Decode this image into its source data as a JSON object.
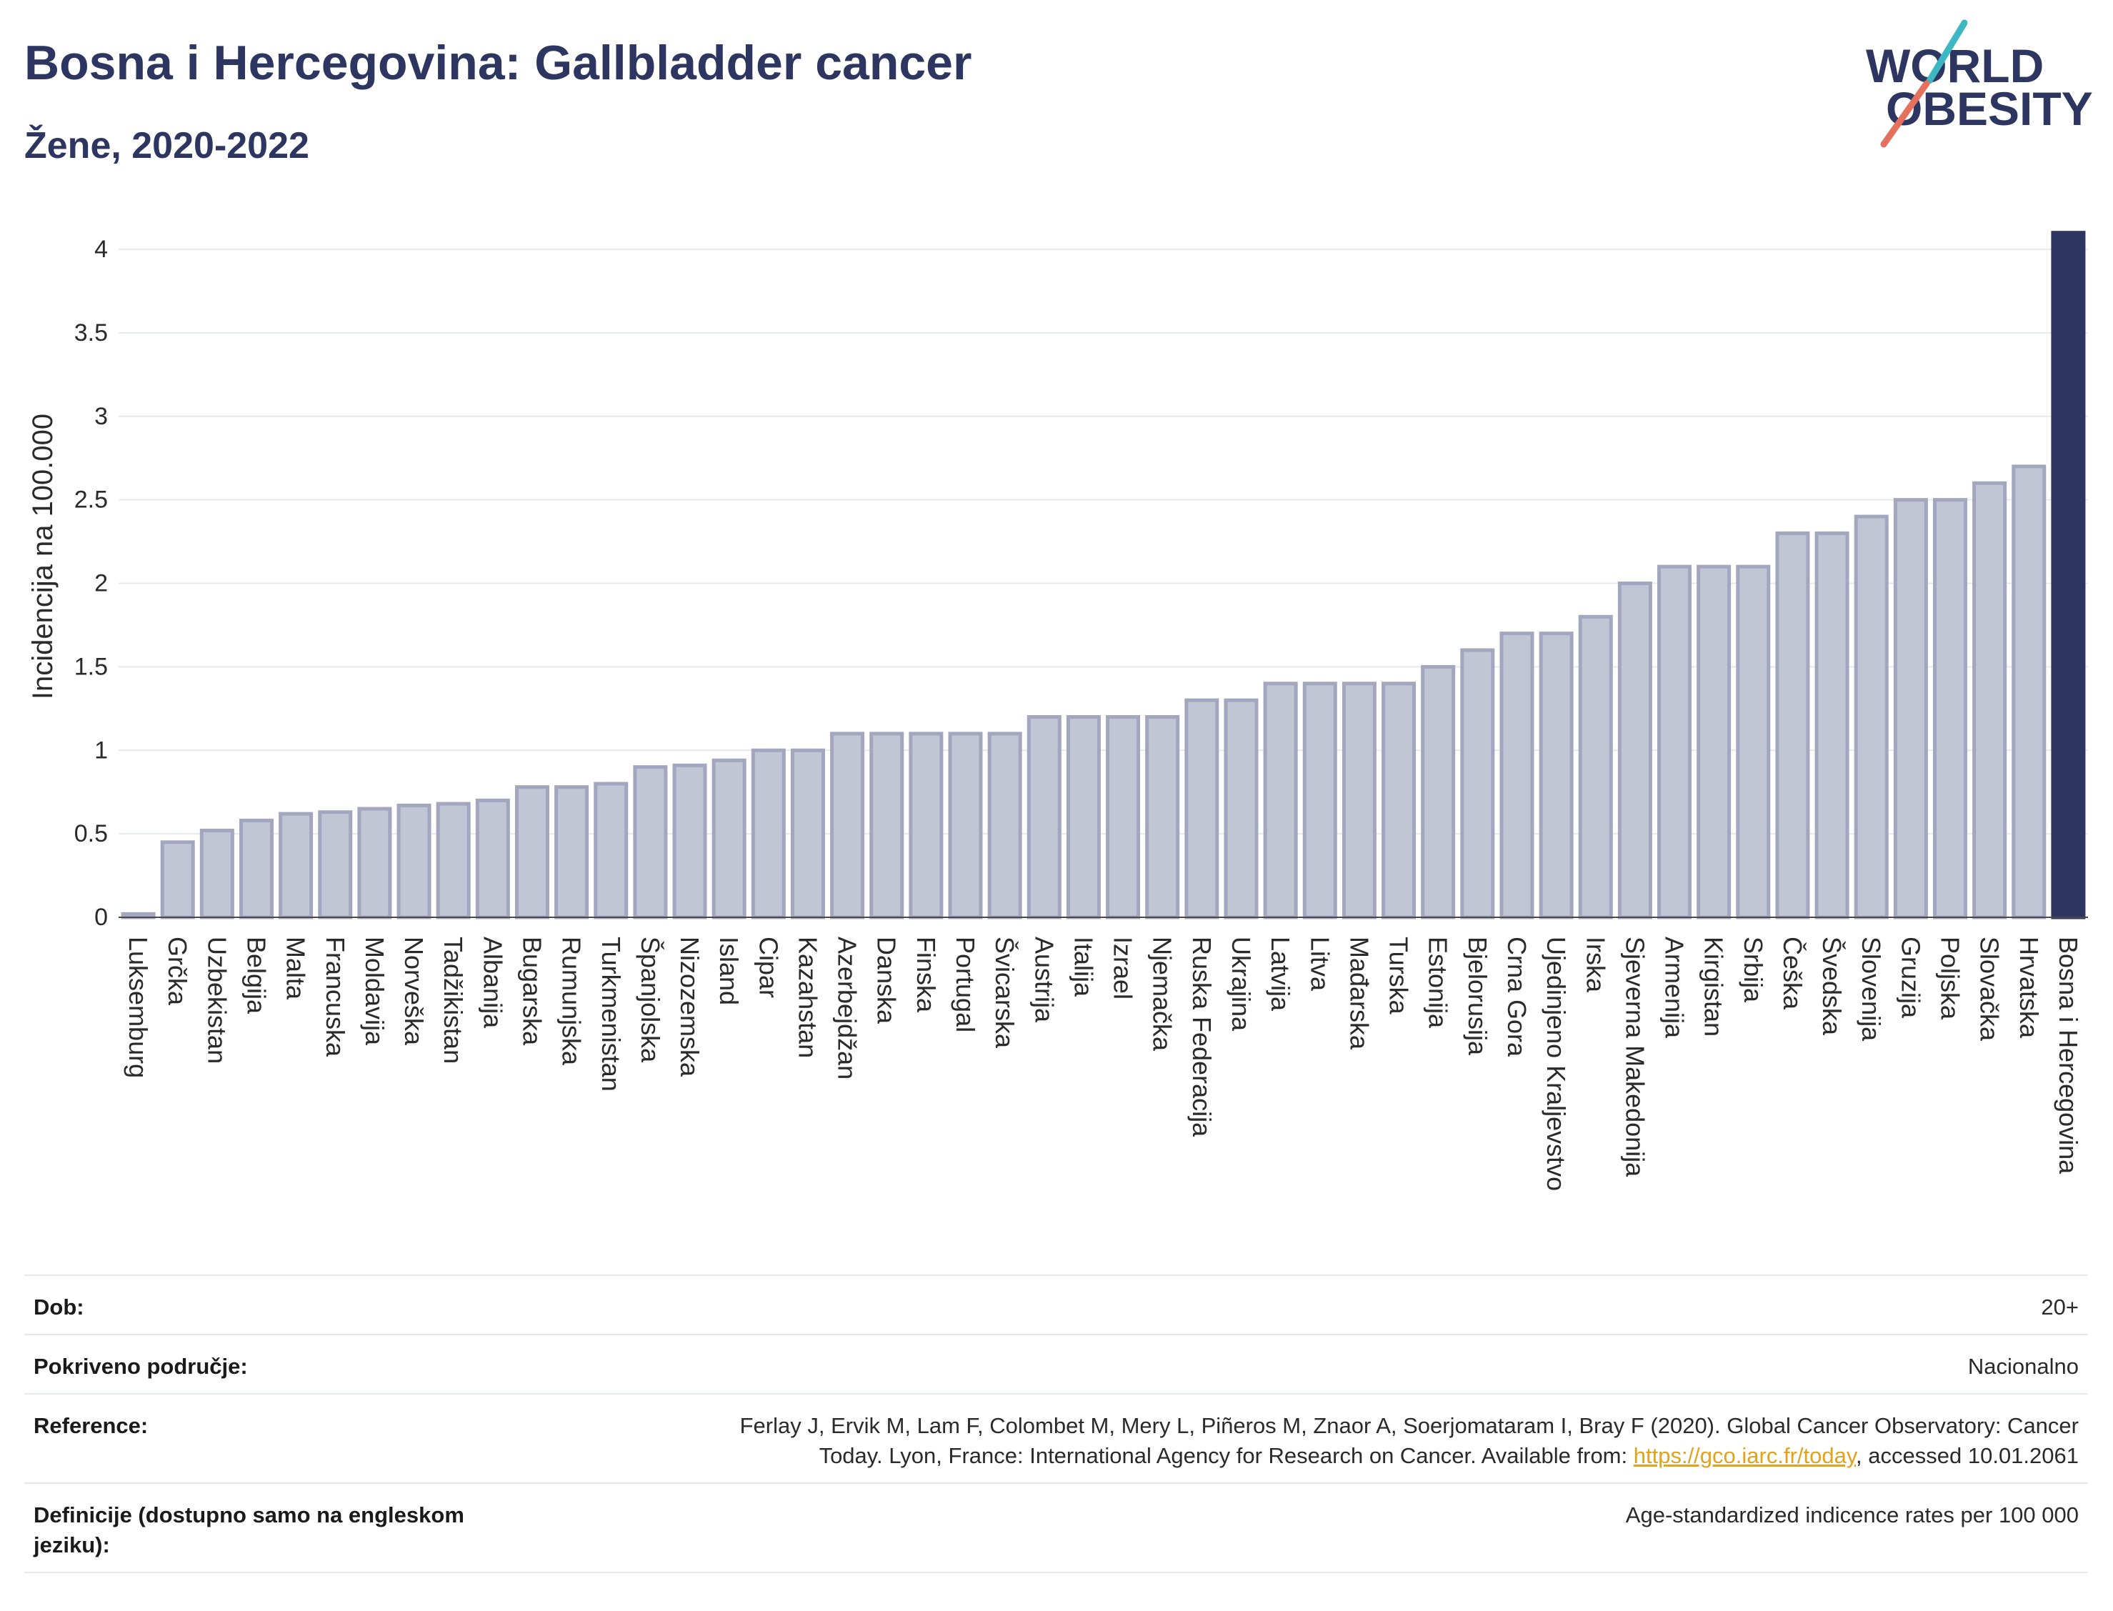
{
  "chart_data": {
    "type": "bar",
    "title": "Bosna i Hercegovina: Gallbladder cancer",
    "subtitle": "Žene, 2020-2022",
    "ylabel": "Incidencija na 100.000",
    "ylim": [
      0,
      4.15
    ],
    "yticks": [
      0,
      0.5,
      1,
      1.5,
      2,
      2.5,
      3,
      3.5,
      4
    ],
    "ytick_labels": [
      "0",
      "0.5",
      "1",
      "1.5",
      "2",
      "2.5",
      "3",
      "3.5",
      "4"
    ],
    "grid": true,
    "categories": [
      "Luksemburg",
      "Grčka",
      "Uzbekistan",
      "Belgija",
      "Malta",
      "Francuska",
      "Moldavija",
      "Norveška",
      "Tadžikistan",
      "Albanija",
      "Bugarska",
      "Rumunjska",
      "Turkmenistan",
      "Španjolska",
      "Nizozemska",
      "Island",
      "Cipar",
      "Kazahstan",
      "Azerbejdžan",
      "Danska",
      "Finska",
      "Portugal",
      "Švicarska",
      "Austrija",
      "Italija",
      "Izrael",
      "Njemačka",
      "Ruska Federacija",
      "Ukrajina",
      "Latvija",
      "Litva",
      "Mađarska",
      "Turska",
      "Estonija",
      "Bjelorusija",
      "Crna Gora",
      "Ujedinjeno Kraljevstvo",
      "Irska",
      "Sjeverna Makedonija",
      "Armenija",
      "Kirgistan",
      "Srbija",
      "Češka",
      "Švedska",
      "Slovenija",
      "Gruzija",
      "Poljska",
      "Slovačka",
      "Hrvatska",
      "Bosna i Hercegovina"
    ],
    "values": [
      0.02,
      0.45,
      0.52,
      0.58,
      0.62,
      0.63,
      0.65,
      0.67,
      0.68,
      0.7,
      0.78,
      0.78,
      0.8,
      0.9,
      0.91,
      0.94,
      1.0,
      1.0,
      1.1,
      1.1,
      1.1,
      1.1,
      1.1,
      1.2,
      1.2,
      1.2,
      1.2,
      1.3,
      1.3,
      1.4,
      1.4,
      1.4,
      1.4,
      1.5,
      1.6,
      1.7,
      1.7,
      1.8,
      2.0,
      2.1,
      2.1,
      2.1,
      2.3,
      2.3,
      2.4,
      2.5,
      2.5,
      2.6,
      2.7,
      4.1
    ],
    "highlight_index": 49
  },
  "logo": {
    "line1": "WORLD",
    "line2": "OBESITY"
  },
  "info": {
    "age": {
      "label": "Dob:",
      "value": "20+"
    },
    "coverage": {
      "label": "Pokriveno područje:",
      "value": "Nacionalno"
    },
    "reference": {
      "label": "Reference:",
      "line1": "Ferlay J, Ervik M, Lam F, Colombet M, Mery L, Piñeros M, Znaor A, Soerjomataram I, Bray F (2020). Global Cancer Observatory: Cancer",
      "line2": "Today. Lyon, France: International Agency for Research on Cancer. Available from: ",
      "link": "https://gco.iarc.fr/today",
      "after_link": ", accessed 10.01.2061"
    },
    "definitions": {
      "label": "Definicije (dostupno samo na engleskom jeziku):",
      "value": "Age-standardized indicence rates per 100 000"
    }
  },
  "colors": {
    "title": "#2d3561",
    "bar_fill": "#c2c5d4",
    "bar_outline": "#a2a6be",
    "highlight": "#2d3561",
    "gridline": "#e6e9ef",
    "link": "#e2a31b",
    "logo_teal": "#3bb8c1",
    "logo_coral": "#e6705e"
  }
}
